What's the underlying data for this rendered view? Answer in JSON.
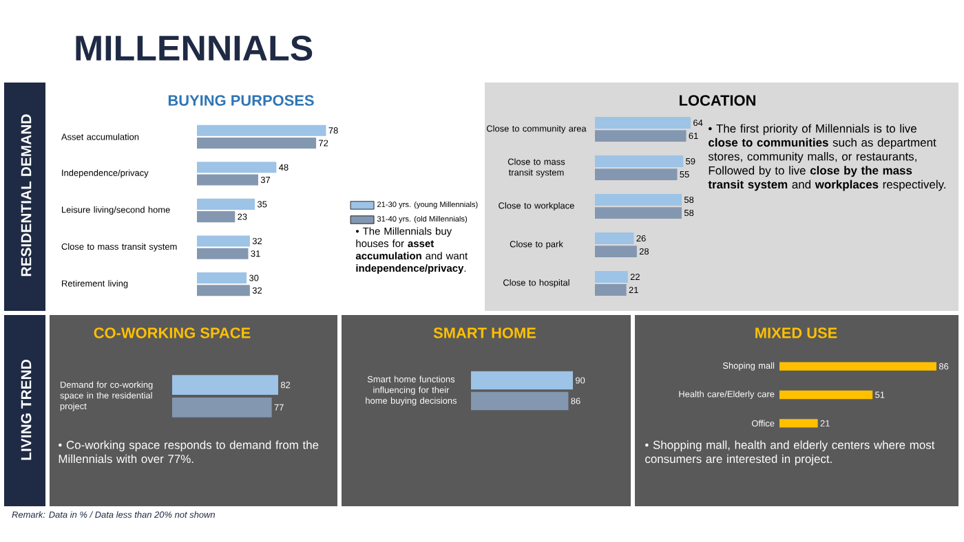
{
  "chart_data": [
    {
      "type": "other",
      "title": "MILLENNIALS",
      "annotations": [
        "RESIDENTIAL DEMAND",
        "LIVING TREND",
        "Remark: Data in % / Data less than 20% not shown"
      ]
    },
    {
      "type": "bar",
      "orientation": "horizontal",
      "title": "BUYING PURPOSES",
      "categories": [
        "Asset accumulation",
        "Independence/privacy",
        "Leisure living/second home",
        "Close to mass transit system",
        "Retirement living"
      ],
      "series": [
        {
          "name": "21-30 yrs. (young Millennials)",
          "color": "#9dc3e6",
          "values": [
            78,
            48,
            35,
            32,
            30
          ]
        },
        {
          "name": "31-40 yrs. (old Millennials)",
          "color": "#8497b0",
          "values": [
            72,
            37,
            23,
            31,
            32
          ]
        }
      ],
      "data_labels": true,
      "legend": "right",
      "annotations": [
        "• The Millennials buy houses for **asset accumulation** and want **independence/privacy**."
      ]
    },
    {
      "type": "bar",
      "orientation": "horizontal",
      "title": "LOCATION",
      "categories": [
        "Close to community area",
        "Close to mass transit system",
        "Close to workplace",
        "Close to park",
        "Close to hospital"
      ],
      "series": [
        {
          "color": "#9dc3e6",
          "values": [
            64,
            59,
            58,
            26,
            22
          ]
        },
        {
          "color": "#8497b0",
          "values": [
            61,
            55,
            58,
            28,
            21
          ]
        }
      ],
      "data_labels": true,
      "annotations": [
        "• The first priority of Millennials is to live **close to communities** such as department stores, community malls, or restaurants, Followed by to live **close by the mass transit system** and **workplaces** respectively."
      ]
    },
    {
      "type": "bar",
      "orientation": "horizontal",
      "title": "CO-WORKING SPACE",
      "categories": [
        "Demand for co-working space in the residential project"
      ],
      "series": [
        {
          "color": "#9dc3e6",
          "values": [
            82
          ]
        },
        {
          "color": "#8497b0",
          "values": [
            77
          ]
        }
      ],
      "data_labels": true,
      "annotations": [
        "• Co-working space responds to demand from the Millennials with over 77%."
      ]
    },
    {
      "type": "bar",
      "orientation": "horizontal",
      "title": "SMART HOME",
      "categories": [
        "Smart home functions influencing for their home buying decisions"
      ],
      "series": [
        {
          "color": "#9dc3e6",
          "values": [
            90
          ]
        },
        {
          "color": "#8497b0",
          "values": [
            86
          ]
        }
      ],
      "data_labels": true
    },
    {
      "type": "bar",
      "orientation": "horizontal",
      "title": "MIXED USE",
      "categories": [
        "Shoping mall",
        "Health care/Elderly care",
        "Office"
      ],
      "values": [
        86,
        51,
        21
      ],
      "color": "#ffc000",
      "data_labels": true,
      "annotations": [
        "• Shopping mall, health and elderly centers where most consumers are interested in project."
      ]
    }
  ]
}
